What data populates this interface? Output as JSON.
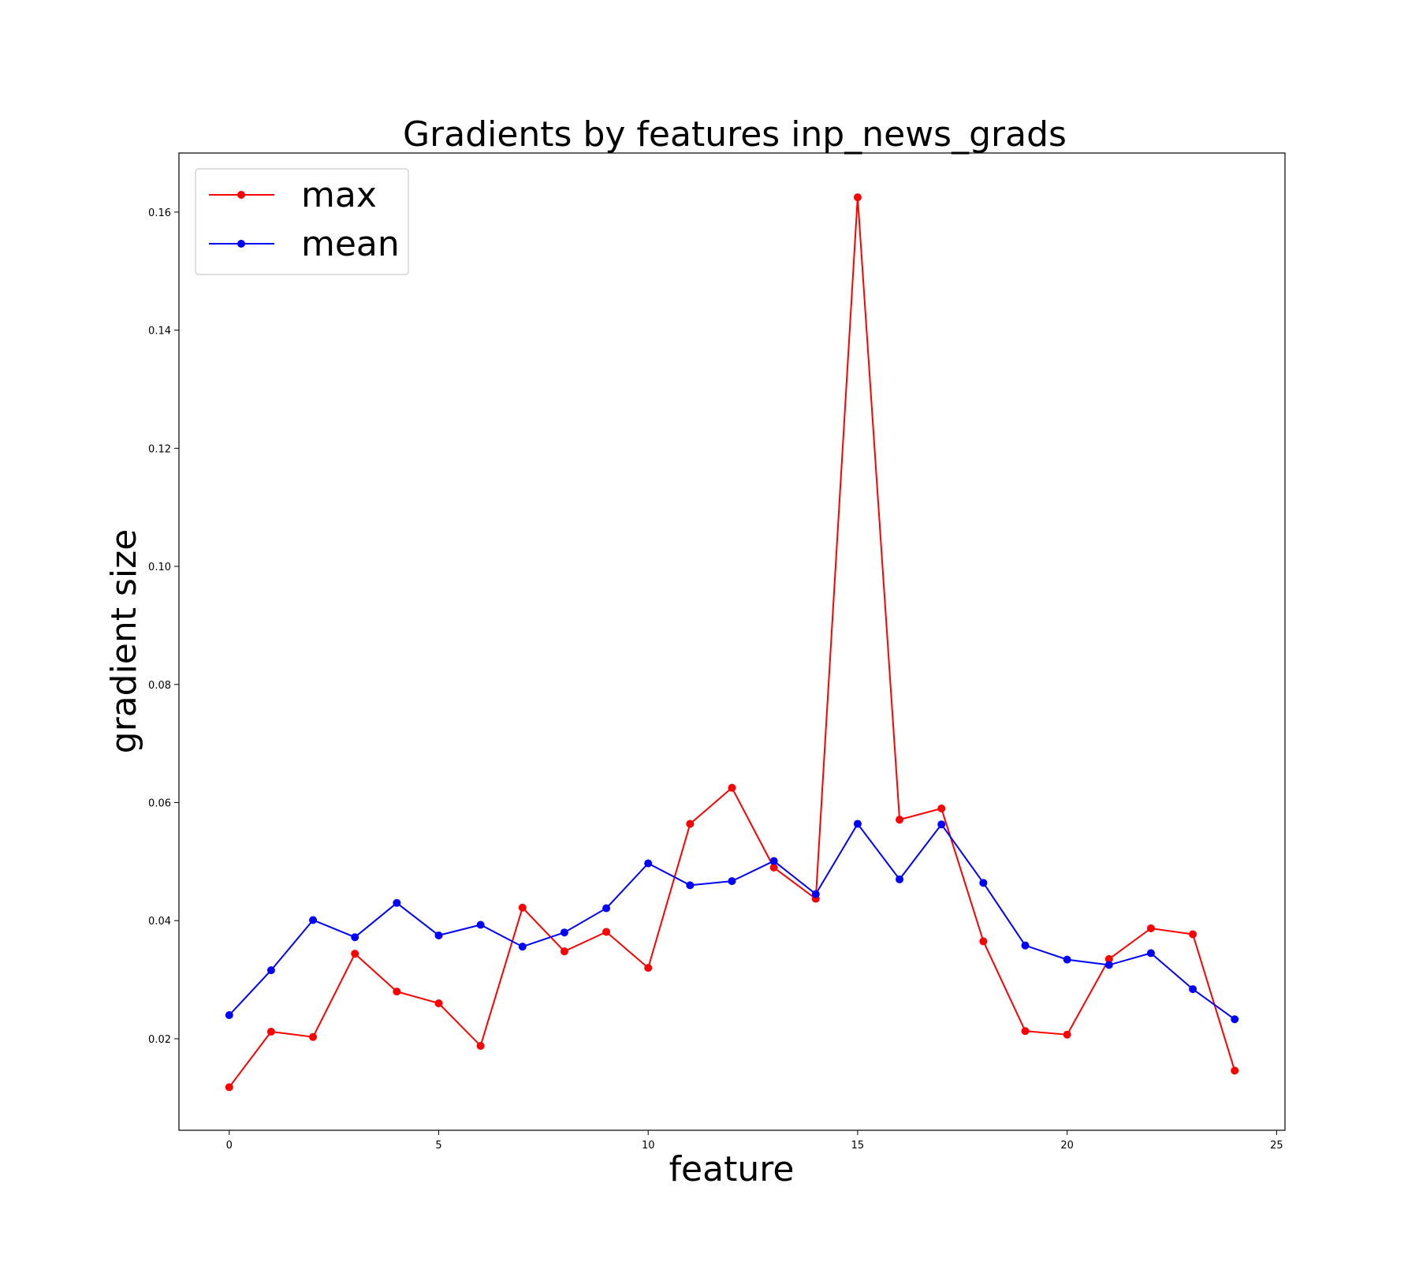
{
  "chart_data": {
    "type": "line",
    "title": "Gradients by features inp_news_grads",
    "xlabel": "feature",
    "ylabel": "gradient size",
    "xlim": [
      -1.2,
      25.2
    ],
    "ylim": [
      0.0045,
      0.17
    ],
    "xticks": [
      0,
      5,
      10,
      15,
      20,
      25
    ],
    "yticks": [
      0.02,
      0.04,
      0.06,
      0.08,
      0.1,
      0.12,
      0.14,
      0.16
    ],
    "xtick_labels": [
      "0",
      "5",
      "10",
      "15",
      "20",
      "25"
    ],
    "ytick_labels": [
      "0.02",
      "0.04",
      "0.06",
      "0.08",
      "0.10",
      "0.12",
      "0.14",
      "0.16"
    ],
    "grid": false,
    "legend_position": "top-left",
    "x": [
      0,
      1,
      2,
      3,
      4,
      5,
      6,
      7,
      8,
      9,
      10,
      11,
      12,
      13,
      14,
      15,
      16,
      17,
      18,
      19,
      20,
      21,
      22,
      23,
      24
    ],
    "series": [
      {
        "name": "max",
        "color": "#ff0000",
        "values": [
          0.0118,
          0.0212,
          0.0203,
          0.0344,
          0.028,
          0.026,
          0.0188,
          0.0422,
          0.0348,
          0.0381,
          0.032,
          0.0564,
          0.0625,
          0.049,
          0.0437,
          0.1625,
          0.0571,
          0.059,
          0.0365,
          0.0213,
          0.0207,
          0.0335,
          0.0387,
          0.0377,
          0.0146
        ]
      },
      {
        "name": "mean",
        "color": "#0000ff",
        "values": [
          0.024,
          0.0316,
          0.0401,
          0.0372,
          0.043,
          0.0375,
          0.0393,
          0.0356,
          0.038,
          0.0421,
          0.0497,
          0.046,
          0.0467,
          0.0501,
          0.0445,
          0.0564,
          0.047,
          0.0563,
          0.0464,
          0.0358,
          0.0334,
          0.0325,
          0.0345,
          0.0284,
          0.0233
        ]
      }
    ]
  }
}
